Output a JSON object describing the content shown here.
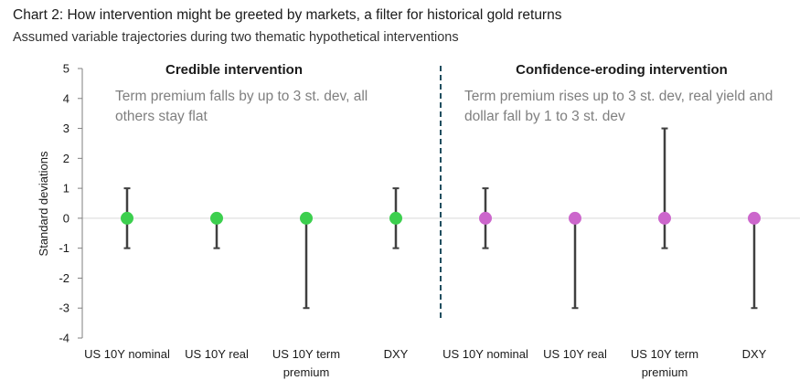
{
  "title": "Chart 2: How intervention might be greeted by markets, a filter for historical gold returns",
  "subtitle": "Assumed variable trajectories during two thematic hypothetical interventions",
  "chart_data": {
    "type": "scatter",
    "ylabel": "Standard deviations",
    "ylim": [
      -4,
      5
    ],
    "yticks": [
      5,
      4,
      3,
      2,
      1,
      0,
      -1,
      -2,
      -3,
      -4
    ],
    "categories": [
      [
        "US 10Y nominal"
      ],
      [
        "US 10Y real"
      ],
      [
        "US 10Y term",
        "premium"
      ],
      [
        "DXY"
      ],
      [
        "US 10Y nominal"
      ],
      [
        "US 10Y real"
      ],
      [
        "US 10Y term",
        "premium"
      ],
      [
        "DXY"
      ]
    ],
    "panels": [
      {
        "heading": "Credible intervention",
        "annotation": [
          "Term premium falls by up to 3 st. dev, all",
          "others stay flat"
        ],
        "color": "#3ccf4e",
        "points": [
          {
            "value": 0,
            "high": 1,
            "low": -1
          },
          {
            "value": 0,
            "high": 0,
            "low": -1
          },
          {
            "value": 0,
            "high": 0,
            "low": -3
          },
          {
            "value": 0,
            "high": 1,
            "low": -1
          }
        ]
      },
      {
        "heading": "Confidence-eroding intervention",
        "annotation": [
          "Term  premium rises up to 3 st. dev, real yield and",
          "dollar fall by 1 to 3 st. dev"
        ],
        "color": "#cc66cc",
        "points": [
          {
            "value": 0,
            "high": 1,
            "low": -1
          },
          {
            "value": 0,
            "high": 0,
            "low": -3
          },
          {
            "value": 0,
            "high": 3,
            "low": -1
          },
          {
            "value": 0,
            "high": 0,
            "low": -3
          }
        ]
      }
    ],
    "colors": {
      "axis": "#7f7f7f",
      "zero_line": "#d9d9d9",
      "whisker": "#404040",
      "divider": "#1f4e5f",
      "annotation": "#7f7f7f"
    }
  }
}
